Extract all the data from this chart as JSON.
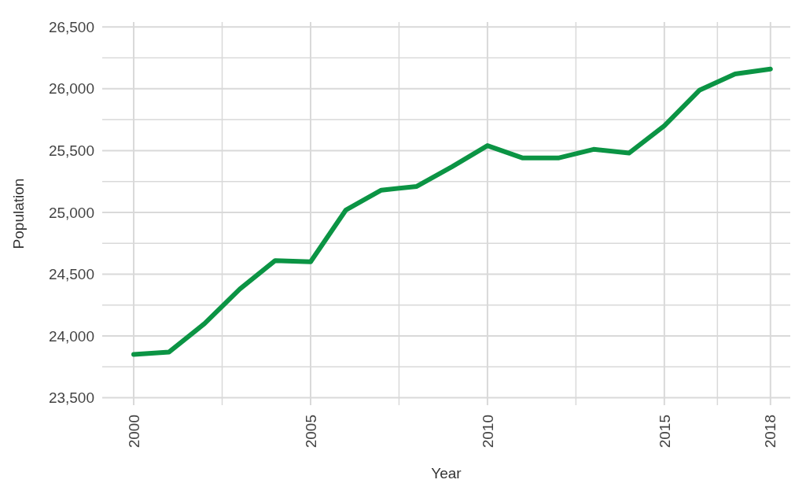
{
  "chart_data": {
    "type": "line",
    "xlabel": "Year",
    "ylabel": "Population",
    "x": [
      2000,
      2001,
      2002,
      2003,
      2004,
      2005,
      2006,
      2007,
      2008,
      2009,
      2010,
      2011,
      2012,
      2013,
      2014,
      2015,
      2016,
      2017,
      2018
    ],
    "series": [
      {
        "color": "#0b9444",
        "values": [
          23850,
          23870,
          24100,
          24380,
          24610,
          24600,
          25020,
          25180,
          25210,
          25370,
          25540,
          25440,
          25440,
          25510,
          25480,
          25700,
          25990,
          26120,
          26160
        ]
      }
    ],
    "xlim": [
      1999.11,
      2018.56
    ],
    "xticks": [
      2000,
      {
        "value": 2002.5,
        "label": null
      },
      2005,
      {
        "value": 2007.5,
        "label": null
      },
      2010,
      {
        "value": 2012.5,
        "label": null
      },
      2015,
      {
        "value": 2016.5,
        "label": null
      },
      2018
    ],
    "ylim": [
      23440,
      26540
    ],
    "yticks": [
      {
        "value": 23500,
        "label": "23,500"
      },
      {
        "value": 23750,
        "label": null
      },
      {
        "value": 24000,
        "label": "24,000"
      },
      {
        "value": 24250,
        "label": null
      },
      {
        "value": 24500,
        "label": "24,500"
      },
      {
        "value": 24750,
        "label": null
      },
      {
        "value": 25000,
        "label": "25,000"
      },
      {
        "value": 25250,
        "label": null
      },
      {
        "value": 25500,
        "label": "25,500"
      },
      {
        "value": 25750,
        "label": null
      },
      {
        "value": 26000,
        "label": "26,000"
      },
      {
        "value": 26250,
        "label": null
      },
      {
        "value": 26500,
        "label": "26,500"
      }
    ],
    "grid": true,
    "line_style": "solid",
    "marker": "none"
  }
}
